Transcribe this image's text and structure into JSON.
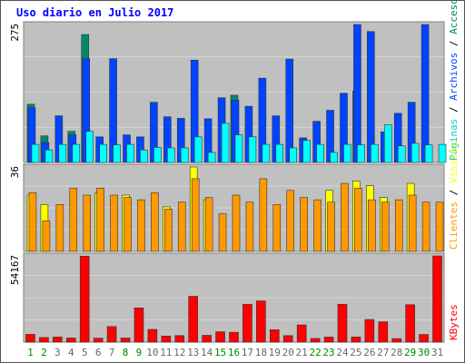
{
  "title": "Uso diario en Julio 2017",
  "colors": {
    "panel_bg": "#c0c0c0",
    "grid": "#e6e6e6",
    "pages": "#00ffff",
    "hits": "#0044ff",
    "visits": "#00886a",
    "visitors": "#ffff00",
    "clients": "#ff9900",
    "kbytes": "#ff0000",
    "weekend_tick": "#008800",
    "weekday_tick": "#666666"
  },
  "chart_data": [
    {
      "type": "bar",
      "panel": "top",
      "ymax_label": "275",
      "legend": [
        "Páginas",
        "Archivos",
        "Accesos"
      ],
      "legend_colors": [
        "#00cccc",
        "#0044ff",
        "#008866"
      ],
      "categories": [
        "1",
        "2",
        "3",
        "4",
        "5",
        "6",
        "7",
        "8",
        "9",
        "10",
        "11",
        "12",
        "13",
        "14",
        "15",
        "16",
        "17",
        "18",
        "19",
        "20",
        "21",
        "22",
        "23",
        "24",
        "25",
        "26",
        "27",
        "28",
        "29",
        "30",
        "31"
      ],
      "series": [
        {
          "name": "Accesos",
          "values": [
            116,
            53,
            0,
            62,
            255,
            0,
            0,
            0,
            0,
            0,
            0,
            0,
            0,
            0,
            0,
            134,
            0,
            0,
            0,
            0,
            0,
            0,
            0,
            0,
            142,
            0,
            0,
            0,
            0,
            0,
            0
          ]
        },
        {
          "name": "Archivos",
          "values": [
            109,
            40,
            93,
            55,
            207,
            51,
            207,
            55,
            51,
            120,
            91,
            88,
            204,
            87,
            129,
            124,
            112,
            168,
            93,
            206,
            49,
            82,
            104,
            138,
            275,
            261,
            61,
            98,
            120,
            275,
            0
          ]
        },
        {
          "name": "Páginas",
          "values": [
            36,
            25,
            36,
            36,
            62,
            36,
            35,
            36,
            25,
            30,
            29,
            29,
            51,
            20,
            78,
            55,
            51,
            36,
            36,
            29,
            44,
            36,
            20,
            36,
            35,
            36,
            75,
            33,
            38,
            35,
            36
          ]
        }
      ]
    },
    {
      "type": "bar",
      "panel": "middle",
      "ymax_label": "36",
      "legend": [
        "Clientes",
        "Visitas"
      ],
      "legend_colors": [
        "#ff9900",
        "#ffff00"
      ],
      "categories": [
        "1",
        "2",
        "3",
        "4",
        "5",
        "6",
        "7",
        "8",
        "9",
        "10",
        "11",
        "12",
        "13",
        "14",
        "15",
        "16",
        "17",
        "18",
        "19",
        "20",
        "21",
        "22",
        "23",
        "24",
        "25",
        "26",
        "27",
        "28",
        "29",
        "30",
        "31"
      ],
      "series": [
        {
          "name": "Visitas",
          "values": [
            24,
            20,
            0,
            0,
            0,
            25,
            0,
            24,
            0,
            0,
            19,
            0,
            36,
            22,
            0,
            0,
            0,
            0,
            0,
            0,
            0,
            0,
            26,
            0,
            30,
            28,
            23,
            0,
            29,
            0,
            0
          ]
        },
        {
          "name": "Clientes",
          "values": [
            25,
            13,
            20,
            27,
            24,
            27,
            24,
            23,
            22,
            25,
            18,
            21,
            31,
            23,
            16,
            24,
            21,
            31,
            20,
            26,
            23,
            22,
            21,
            29,
            27,
            22,
            21,
            22,
            24,
            21,
            21
          ]
        }
      ]
    },
    {
      "type": "bar",
      "panel": "bottom",
      "ymax_label": "54167",
      "legend": [
        "KBytes"
      ],
      "legend_colors": [
        "#ff0000"
      ],
      "categories": [
        "1",
        "2",
        "3",
        "4",
        "5",
        "6",
        "7",
        "8",
        "9",
        "10",
        "11",
        "12",
        "13",
        "14",
        "15",
        "16",
        "17",
        "18",
        "19",
        "20",
        "21",
        "22",
        "23",
        "24",
        "25",
        "26",
        "27",
        "28",
        "29",
        "30",
        "31"
      ],
      "series": [
        {
          "name": "KBytes",
          "values": [
            4900,
            2900,
            3200,
            2600,
            54000,
            2500,
            9800,
            2600,
            21500,
            8000,
            3800,
            4100,
            28800,
            4300,
            6500,
            6200,
            23800,
            25900,
            7800,
            4100,
            10800,
            2300,
            3200,
            23800,
            3200,
            14200,
            12800,
            2200,
            23500,
            4800,
            54167
          ]
        }
      ]
    }
  ]
}
